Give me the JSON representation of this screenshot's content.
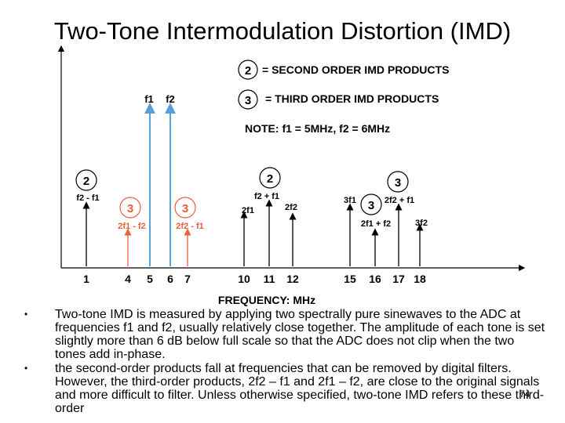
{
  "title": "Two-Tone Intermodulation Distortion (IMD)",
  "legend": {
    "second_order_marker": "2",
    "second_order_label": "= SECOND ORDER IMD PRODUCTS",
    "third_order_marker": "3",
    "third_order_label": "= THIRD ORDER IMD PRODUCTS",
    "note": "NOTE:  f1 = 5MHz, f2 = 6MHz"
  },
  "xlabel": "FREQUENCY: MHz",
  "ticks": [
    "1",
    "4",
    "5",
    "6",
    "7",
    "10",
    "11",
    "12",
    "15",
    "16",
    "17",
    "18"
  ],
  "chart_data": {
    "type": "bar",
    "xlabel": "FREQUENCY: MHz",
    "x": [
      1,
      4,
      5,
      6,
      7,
      10,
      11,
      12,
      15,
      16,
      17,
      18
    ],
    "lines": [
      {
        "freq": 1,
        "label": "f2 - f1",
        "order": "2",
        "color": "#000000"
      },
      {
        "freq": 4,
        "label": "2f1 - f2",
        "order": "3",
        "color": "#e8603c"
      },
      {
        "freq": 5,
        "label": "f1",
        "order": "fundamental",
        "color": "#5aa0d8"
      },
      {
        "freq": 6,
        "label": "f2",
        "order": "fundamental",
        "color": "#5aa0d8"
      },
      {
        "freq": 7,
        "label": "2f2 - f1",
        "order": "3",
        "color": "#e8603c"
      },
      {
        "freq": 10,
        "label": "2f1",
        "order": "2",
        "color": "#000000"
      },
      {
        "freq": 11,
        "label": "f2 + f1",
        "order": "2",
        "color": "#000000"
      },
      {
        "freq": 12,
        "label": "2f2",
        "order": "2",
        "color": "#000000"
      },
      {
        "freq": 15,
        "label": "3f1",
        "order": "3",
        "color": "#000000"
      },
      {
        "freq": 16,
        "label": "2f1 + f2",
        "order": "3",
        "color": "#000000"
      },
      {
        "freq": 17,
        "label": "2f2 + f1",
        "order": "3",
        "color": "#000000"
      },
      {
        "freq": 18,
        "label": "3f2",
        "order": "3",
        "color": "#000000"
      }
    ]
  },
  "bullets": [
    "Two-tone IMD is measured by applying two spectrally pure sinewaves to the ADC at frequencies f1 and f2, usually relatively close together. The amplitude of each tone is set slightly more than 6 dB below full scale so that the ADC does not clip when the two tones add in-phase.",
    "the second-order products fall at frequencies that can be removed by digital filters. However, the third-order products, 2f2 – f1 and 2f1 – f2, are close to the original signals and more difficult to filter. Unless otherwise specified, two-tone IMD refers to these third-order"
  ],
  "page_number": "74",
  "colors": {
    "fundamental": "#5aa0d8",
    "third_order_inband": "#e8603c",
    "product": "#000000"
  }
}
